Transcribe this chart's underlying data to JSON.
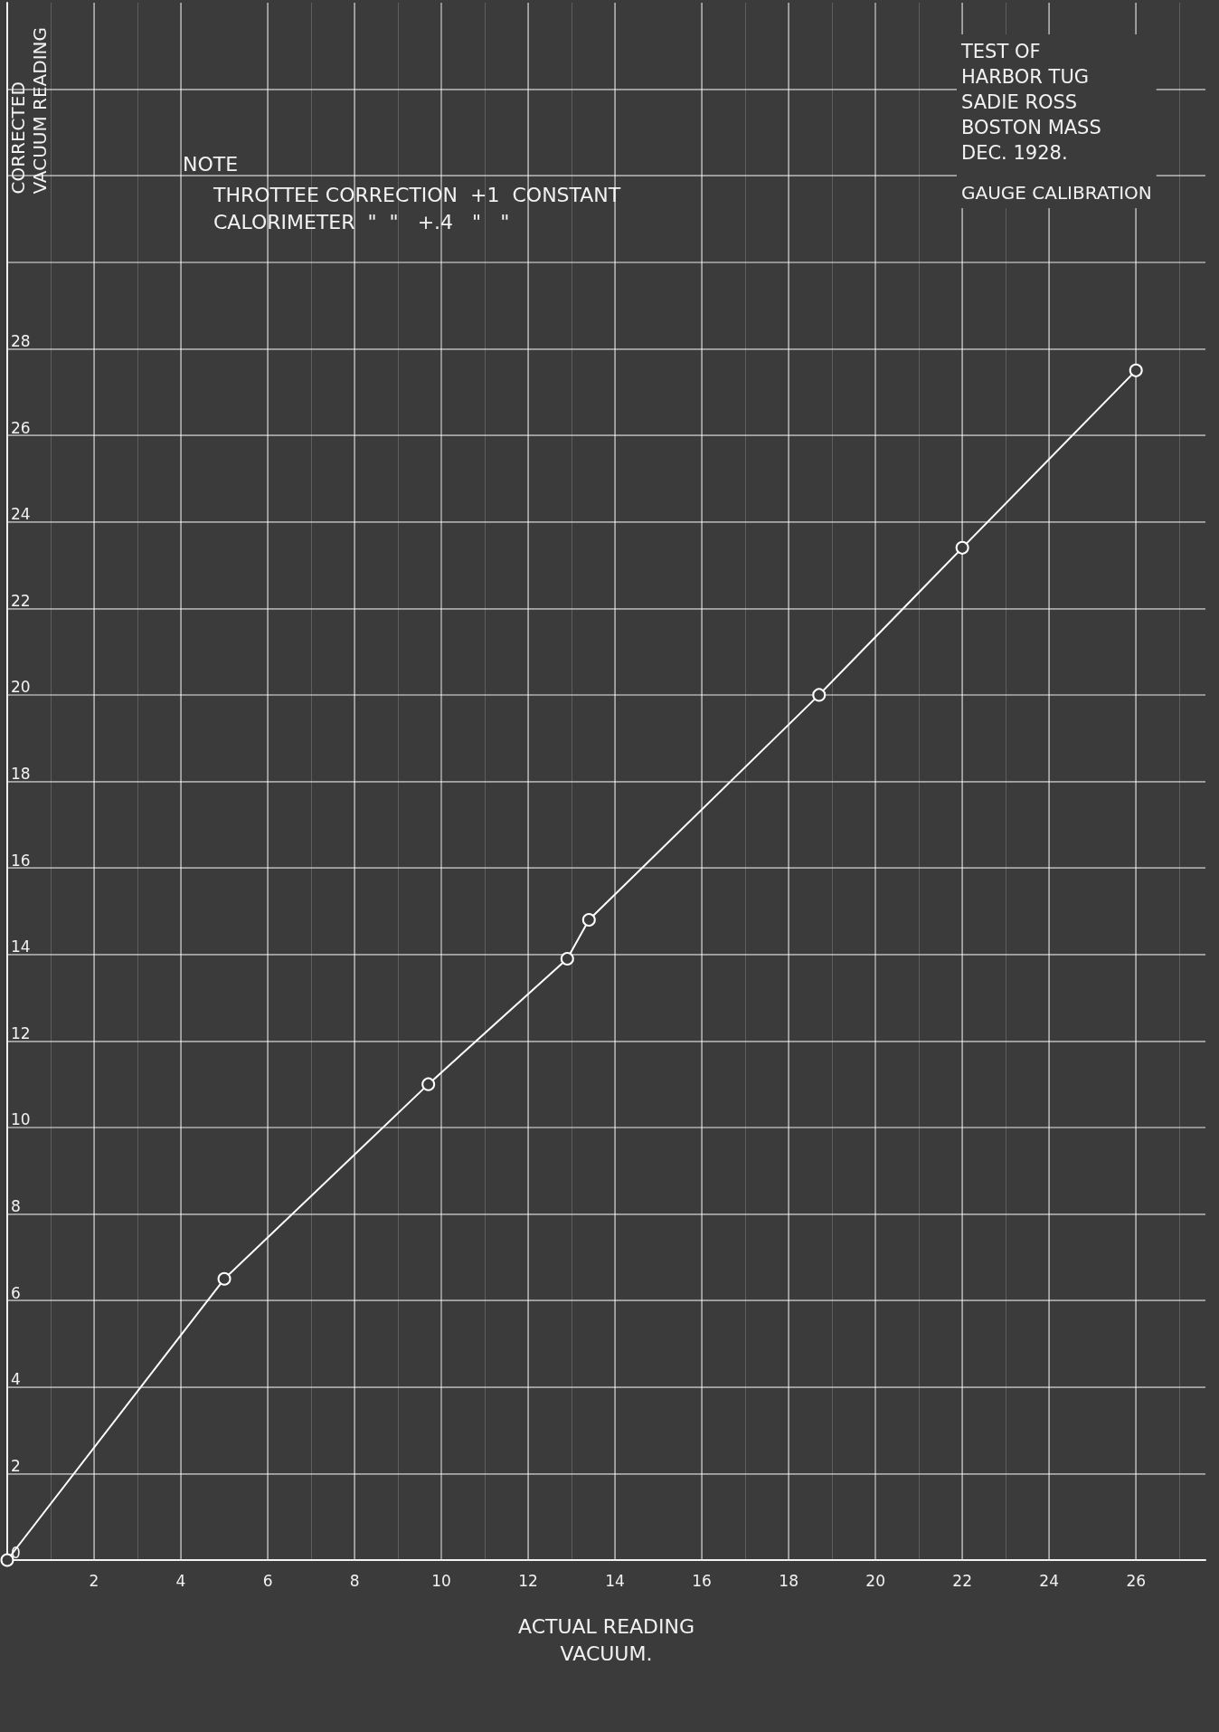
{
  "chart_data": {
    "type": "line",
    "title": "TEST OF\nHARBOR TUG\nSADIE ROSS\nBOSTON MASS\nDEC. 1928.",
    "subtitle": "GAUGE CALIBRATION",
    "xlabel": "ACTUAL READING\nVACUUM.",
    "ylabel": "CORRECTED\nVACUUM READING",
    "annotations": [
      "NOTE",
      "THROTTEE CORRECTION  +1  CONSTANT",
      "CALORIMETER  \"  \"   +.4   \"   \""
    ],
    "x": [
      0,
      5.0,
      9.7,
      12.9,
      13.4,
      18.7,
      22.0,
      26.0
    ],
    "series": [
      {
        "color": "#ffffff",
        "values": [
          0,
          6.5,
          11.0,
          13.9,
          14.8,
          20.0,
          23.4,
          27.5
        ]
      }
    ],
    "xlim": [
      0,
      27.6
    ],
    "xticks": [
      2,
      4,
      6,
      8,
      10,
      12,
      14,
      16,
      18,
      20,
      22,
      24,
      26
    ],
    "ylim": [
      0,
      36
    ],
    "yticks": [
      0,
      2,
      4,
      6,
      8,
      10,
      12,
      14,
      16,
      18,
      20,
      22,
      24,
      26,
      28,
      {
        "value": 30,
        "label": null
      },
      {
        "value": 32,
        "label": null
      },
      {
        "value": 34,
        "label": null
      }
    ],
    "grid": true,
    "marker": "circle",
    "line_style": "solid"
  }
}
